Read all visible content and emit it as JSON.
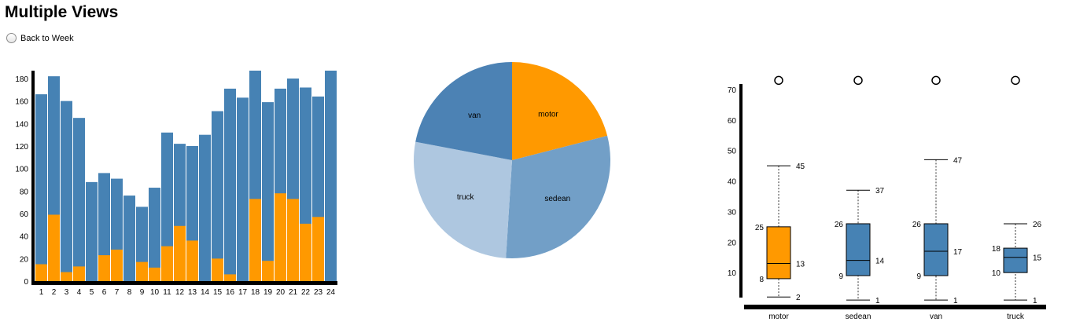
{
  "page": {
    "title": "Multiple Views"
  },
  "controls": {
    "back_label": "Back to Week"
  },
  "colors": {
    "total": "#4682b4",
    "highlight": "#ff9900",
    "pie": [
      "#ff9900",
      "#729fc7",
      "#aec7e0",
      "#4c82b4"
    ]
  },
  "chart_data": [
    {
      "type": "bar",
      "categories": [
        "1",
        "2",
        "3",
        "4",
        "5",
        "6",
        "7",
        "8",
        "9",
        "10",
        "11",
        "12",
        "13",
        "14",
        "15",
        "16",
        "17",
        "18",
        "19",
        "20",
        "21",
        "22",
        "23",
        "24"
      ],
      "series": [
        {
          "values": [
            166,
            182,
            160,
            145,
            88,
            96,
            91,
            76,
            66,
            83,
            132,
            122,
            120,
            130,
            151,
            171,
            163,
            187,
            159,
            171,
            180,
            172,
            164,
            187
          ]
        },
        {
          "values": [
            15,
            59,
            8,
            13,
            0,
            23,
            28,
            0,
            17,
            12,
            31,
            49,
            36,
            0,
            20,
            6,
            0,
            73,
            18,
            78,
            73,
            51,
            57,
            0
          ]
        }
      ],
      "ylim": [
        0,
        180
      ],
      "yticks": [
        0,
        20,
        40,
        60,
        80,
        100,
        120,
        140,
        160,
        180
      ]
    },
    {
      "type": "pie",
      "labels": [
        "motor",
        "sedean",
        "truck",
        "van"
      ],
      "values": [
        21,
        30,
        27,
        22
      ]
    },
    {
      "type": "boxplot",
      "categories": [
        "motor",
        "sedean",
        "van",
        "truck"
      ],
      "ylim": [
        0,
        70
      ],
      "yticks": [
        10,
        20,
        30,
        40,
        50,
        60,
        70
      ],
      "boxes": [
        {
          "min": 2,
          "q1": 8,
          "median": 13,
          "q3": 25,
          "max": 45,
          "outlier": 73,
          "labels": {
            "max": "45",
            "q3": "25",
            "median": "13",
            "q1": "8",
            "min": "2"
          }
        },
        {
          "min": 1,
          "q1": 9,
          "median": 14,
          "q3": 26,
          "max": 37,
          "outlier": 73,
          "labels": {
            "max": "37",
            "q3": "26",
            "median": "14",
            "q1": "9",
            "min": "1"
          }
        },
        {
          "min": 1,
          "q1": 9,
          "median": 17,
          "q3": 26,
          "max": 47,
          "outlier": 73,
          "labels": {
            "max": "47",
            "q3": "26",
            "median": "17",
            "q1": "9",
            "min": "1"
          }
        },
        {
          "min": 1,
          "q1": 10,
          "median": 15,
          "q3": 18,
          "max": 26,
          "outlier": 73,
          "labels": {
            "max": "26",
            "q3": "18",
            "median": "15",
            "q1": "10",
            "min": "1"
          }
        }
      ]
    }
  ]
}
